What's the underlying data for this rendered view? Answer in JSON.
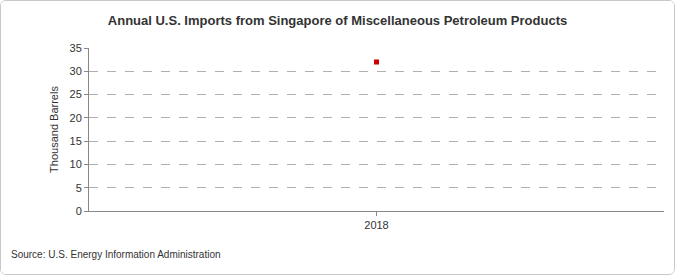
{
  "chart_data": {
    "type": "line",
    "title": "Annual U.S. Imports from Singapore of Miscellaneous Petroleum Products",
    "y_label": "Thousand Barrels",
    "source": "Source: U.S. Energy Information Administration",
    "categories": [
      "2018"
    ],
    "values": [
      32
    ],
    "color": "#cc0000",
    "marker": "square",
    "ylim": [
      0,
      35
    ],
    "yticks": [
      0,
      5,
      10,
      15,
      20,
      25,
      30,
      35
    ],
    "grid": true
  }
}
